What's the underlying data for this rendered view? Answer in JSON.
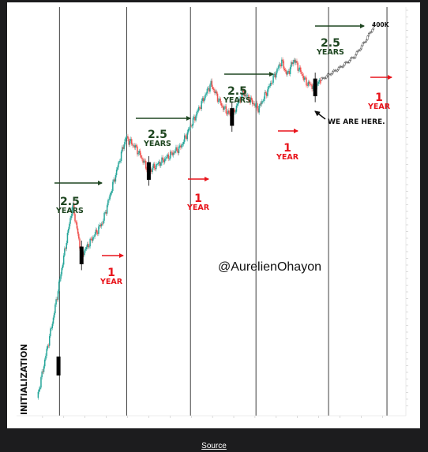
{
  "chart_data": {
    "type": "line",
    "title": "",
    "xlabel": "",
    "ylabel": "",
    "y_scale": "log",
    "series": [
      {
        "values": [
          {
            "x": "2009-10",
            "y": 0.001
          },
          {
            "x": "2010-07",
            "y": 0.07
          },
          {
            "x": "2011-06",
            "y": 30
          },
          {
            "x": "2011-11",
            "y": 2
          },
          {
            "x": "2012-11",
            "y": 12
          },
          {
            "x": "2013-12",
            "y": 1100
          },
          {
            "x": "2014-06",
            "y": 600
          },
          {
            "x": "2015-01",
            "y": 180
          },
          {
            "x": "2016-07",
            "y": 650
          },
          {
            "x": "2017-12",
            "y": 19000
          },
          {
            "x": "2018-06",
            "y": 6000
          },
          {
            "x": "2018-12",
            "y": 3200
          },
          {
            "x": "2019-06",
            "y": 12000
          },
          {
            "x": "2020-03",
            "y": 5000
          },
          {
            "x": "2021-04",
            "y": 64000
          },
          {
            "x": "2021-07",
            "y": 30000
          },
          {
            "x": "2021-11",
            "y": 69000
          },
          {
            "x": "2022-06",
            "y": 20000
          },
          {
            "x": "2022-11",
            "y": 15500
          },
          {
            "x": "2023-02",
            "y": 23000
          }
        ]
      }
    ],
    "projection": [
      {
        "x": "2023-02",
        "y": 23000
      },
      {
        "x": "2024-01",
        "y": 45000
      },
      {
        "x": "2024-09",
        "y": 80000
      },
      {
        "x": "2025-03",
        "y": 180000
      },
      {
        "x": "2025-08",
        "y": 400000
      }
    ],
    "ylim": [
      0.0005,
      800000
    ],
    "xlim": [
      "2009-01",
      "2026-12"
    ],
    "grid": false,
    "legend": "none",
    "cycle_markers": [
      "2011-11",
      "2015-01",
      "2018-12",
      "2022-11"
    ]
  },
  "annotations": {
    "initialization": "INITIALIZATION",
    "green_number": "2.5",
    "green_word": "YEARS",
    "red_number": "1",
    "red_word": "YEAR",
    "target": "400K",
    "here": "WE ARE HERE.",
    "handle": "@AurelienOhayon"
  },
  "source_link": "Source",
  "colors": {
    "candle_up": "#26a69a",
    "candle_down": "#ef5350",
    "green_arrow": "#1e4620",
    "red_arrow": "#e8141b",
    "background_page": "#1c1c1e"
  }
}
